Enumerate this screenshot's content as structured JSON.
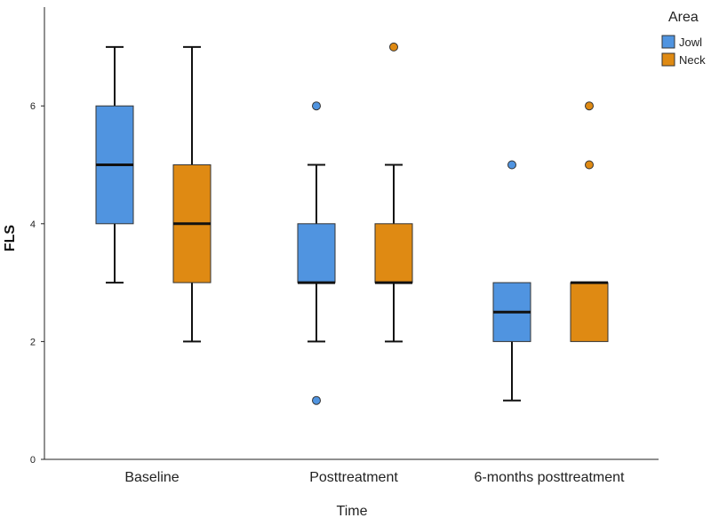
{
  "chart_data": {
    "type": "boxplot",
    "xlabel": "Time",
    "ylabel": "FLS",
    "ylim": [
      0,
      7.8
    ],
    "yticks": [
      0,
      2,
      4,
      6
    ],
    "categories": [
      "Baseline",
      "Posttreatment",
      "6-months posttreatment"
    ],
    "legend": {
      "title": "Area",
      "position": "top-right",
      "entries": [
        {
          "name": "Jowl",
          "color": "#5094e0"
        },
        {
          "name": "Neck",
          "color": "#df8a13"
        }
      ]
    },
    "series": [
      {
        "name": "Jowl",
        "color": "#5094e0",
        "boxes": [
          {
            "category": "Baseline",
            "min": 3,
            "q1": 4,
            "median": 5,
            "q3": 6,
            "max": 7,
            "outliers": []
          },
          {
            "category": "Posttreatment",
            "min": 2,
            "q1": 3,
            "median": 3,
            "q3": 4,
            "max": 5,
            "outliers": [
              6,
              1
            ]
          },
          {
            "category": "6-months posttreatment",
            "min": 1,
            "q1": 2,
            "median": 2.5,
            "q3": 3,
            "max": 3,
            "outliers": [
              5
            ]
          }
        ]
      },
      {
        "name": "Neck",
        "color": "#df8a13",
        "boxes": [
          {
            "category": "Baseline",
            "min": 2,
            "q1": 3,
            "median": 4,
            "q3": 5,
            "max": 7,
            "outliers": []
          },
          {
            "category": "Posttreatment",
            "min": 2,
            "q1": 3,
            "median": 3,
            "q3": 4,
            "max": 5,
            "outliers": [
              7
            ]
          },
          {
            "category": "6-months posttreatment",
            "min": 2,
            "q1": 2,
            "median": 3,
            "q3": 3,
            "max": 3,
            "outliers": [
              6,
              5
            ]
          }
        ]
      }
    ]
  }
}
